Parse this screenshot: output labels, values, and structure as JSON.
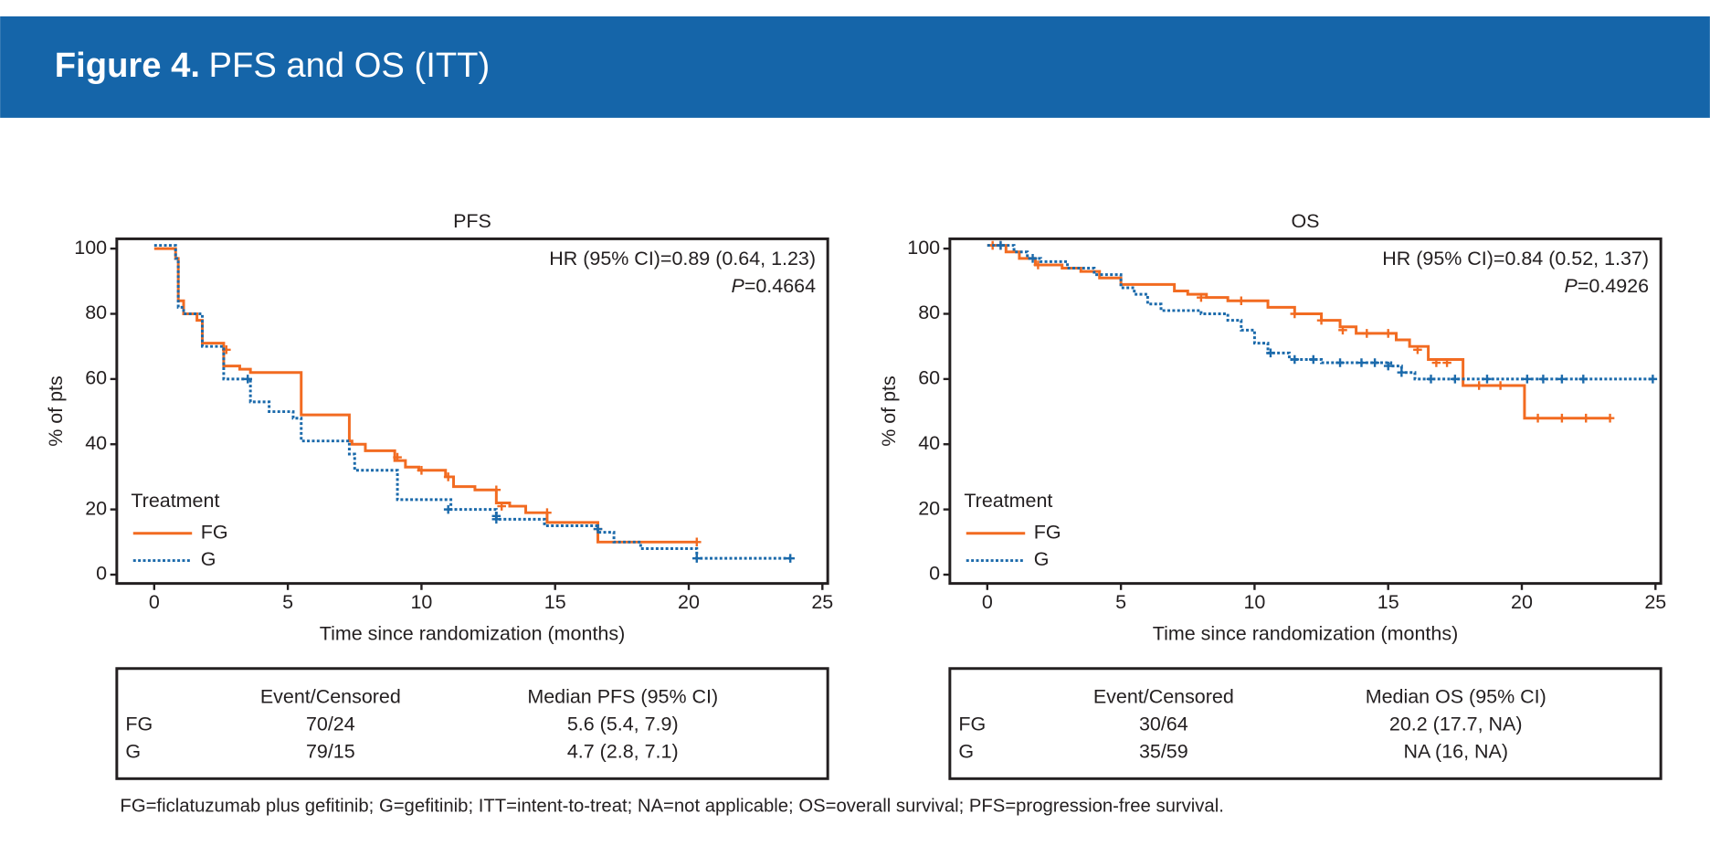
{
  "header": {
    "label": "Figure 4.",
    "title": "PFS and OS (ITT)"
  },
  "chart_data": [
    {
      "type": "step",
      "title": "PFS",
      "xlabel": "Time since randomization (months)",
      "ylabel": "% of pts",
      "annotation": "HR (95% CI)=0.89 (0.64, 1.23)",
      "p_label": "P",
      "p_value": "=0.4664",
      "xlim": [
        -1.4,
        25.2
      ],
      "ylim": [
        -2.7,
        103
      ],
      "xticks": [
        0,
        5,
        10,
        15,
        20,
        25
      ],
      "yticks": [
        0,
        20,
        40,
        60,
        80,
        100
      ],
      "legend_title": "Treatment",
      "legend": "lower left",
      "series": [
        {
          "name": "FG",
          "color": "#f26b21",
          "style": "solid",
          "x": [
            0,
            0.8,
            0.9,
            1.1,
            1.6,
            1.8,
            2.6,
            3.2,
            3.6,
            5.5,
            7.3,
            7.4,
            7.9,
            9.0,
            9.4,
            9.9,
            10.9,
            11.2,
            12.0,
            12.8,
            13.3,
            13.9,
            14.7,
            16.6,
            20.3
          ],
          "y": [
            100,
            97,
            84,
            80,
            78,
            71,
            64,
            63,
            62,
            49,
            41,
            40,
            38,
            35,
            33,
            32,
            30,
            27,
            26,
            22,
            21,
            19,
            16,
            10,
            10
          ],
          "censored_x": [
            2.7,
            9.1,
            10.0,
            11.0,
            12.8,
            13.0,
            14.7,
            16.6,
            20.3
          ],
          "censored_y": [
            69,
            36,
            32,
            30,
            26,
            21,
            19,
            14,
            10
          ]
        },
        {
          "name": "G",
          "color": "#1b6aab",
          "style": "dotted",
          "x": [
            0,
            0.8,
            0.9,
            1.1,
            1.8,
            2.6,
            3.6,
            4.3,
            5.2,
            5.5,
            7.3,
            7.5,
            9.1,
            11.1,
            12.8,
            14.6,
            16.6,
            17.2,
            18.2,
            20.3,
            23.8
          ],
          "y": [
            101,
            97,
            82,
            80,
            70,
            60,
            53,
            50,
            48,
            41,
            37,
            32,
            23,
            20,
            17,
            15,
            13,
            10,
            8,
            5,
            5
          ],
          "censored_x": [
            3.5,
            11.0,
            12.8,
            12.8,
            16.6,
            20.3,
            23.8
          ],
          "censored_y": [
            60,
            20,
            18,
            17,
            14,
            5,
            5
          ]
        }
      ]
    },
    {
      "type": "step",
      "title": "OS",
      "xlabel": "Time since randomization (months)",
      "ylabel": "% of pts",
      "annotation": "HR (95% CI)=0.84 (0.52, 1.37)",
      "p_label": "P",
      "p_value": "=0.4926",
      "xlim": [
        -1.4,
        25.2
      ],
      "ylim": [
        -2.7,
        103
      ],
      "xticks": [
        0,
        5,
        10,
        15,
        20,
        25
      ],
      "yticks": [
        0,
        20,
        40,
        60,
        80,
        100
      ],
      "legend_title": "Treatment",
      "legend": "lower left",
      "series": [
        {
          "name": "FG",
          "color": "#f26b21",
          "style": "solid",
          "x": [
            0,
            0.7,
            1.2,
            1.8,
            2.8,
            3.5,
            4.2,
            5,
            7.0,
            7.5,
            8.2,
            9.0,
            10.5,
            11.5,
            12.5,
            13.2,
            13.8,
            15.3,
            15.8,
            16.5,
            17.8,
            20.1,
            23.3
          ],
          "y": [
            101,
            99,
            97,
            95,
            94,
            93,
            91,
            89,
            87,
            86,
            85,
            84,
            82,
            80,
            78,
            76,
            74,
            72,
            70,
            66,
            58,
            48,
            48
          ],
          "censored_x": [
            0.2,
            0.5,
            1.9,
            8.0,
            9.5,
            11.5,
            12.5,
            13.3,
            14.2,
            15.0,
            16.1,
            16.8,
            17.2,
            18.4,
            19.2,
            20.6,
            21.5,
            22.4,
            23.3
          ],
          "censored_y": [
            101,
            101,
            95,
            85,
            84,
            80,
            78,
            75,
            74,
            74,
            69,
            65,
            65,
            58,
            58,
            48,
            48,
            48,
            48
          ]
        },
        {
          "name": "G",
          "color": "#1b6aab",
          "style": "dotted",
          "x": [
            0,
            1.0,
            1.5,
            2.0,
            3.0,
            4.0,
            5.0,
            5.5,
            6.0,
            6.5,
            8.0,
            9.0,
            9.5,
            10.0,
            10.5,
            11.3,
            12.5,
            15.1,
            15.5,
            16.0,
            24.9
          ],
          "y": [
            101,
            99,
            97,
            96,
            94,
            92,
            88,
            86,
            83,
            81,
            80,
            78,
            75,
            71,
            68,
            66,
            65,
            64,
            62,
            60,
            60
          ],
          "censored_x": [
            0.5,
            1.7,
            10.6,
            11.5,
            12.2,
            13.2,
            14.0,
            14.5,
            15.0,
            15.5,
            16.6,
            17.5,
            18.7,
            20.2,
            20.8,
            21.5,
            22.3,
            24.9
          ],
          "censored_y": [
            101,
            97,
            68,
            66,
            66,
            65,
            65,
            65,
            64,
            62,
            60,
            60,
            60,
            60,
            60,
            60,
            60,
            60
          ]
        }
      ]
    }
  ],
  "tables": [
    {
      "headers": [
        "Event/Censored",
        "Median PFS (95% CI)"
      ],
      "rows": [
        [
          "FG",
          "70/24",
          "5.6 (5.4, 7.9)"
        ],
        [
          "G",
          "79/15",
          "4.7 (2.8, 7.1)"
        ]
      ]
    },
    {
      "headers": [
        "Event/Censored",
        "Median OS (95% CI)"
      ],
      "rows": [
        [
          "FG",
          "30/64",
          "20.2 (17.7, NA)"
        ],
        [
          "G",
          "35/59",
          "NA (16, NA)"
        ]
      ]
    }
  ],
  "footnote": "FG=ficlatuzumab plus gefitinib; G=gefitinib; ITT=intent-to-treat; NA=not applicable; OS=overall survival; PFS=progression-free survival."
}
